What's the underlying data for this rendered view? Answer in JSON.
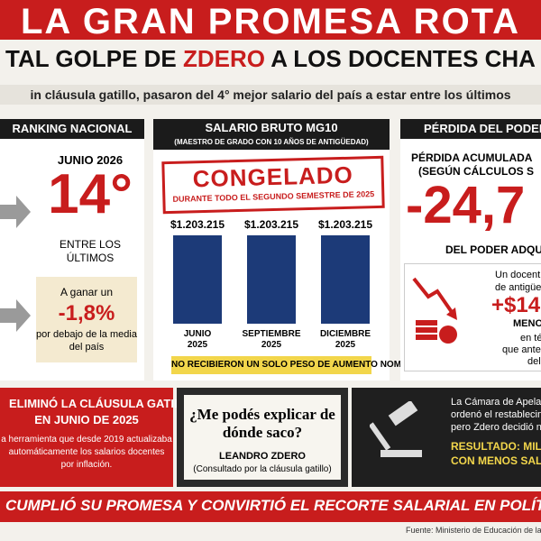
{
  "header": {
    "title": "LA GRAN PROMESA ROTA",
    "subtitle_parts": [
      "TAL GOLPE DE ",
      "ZDERO",
      " A LOS DOCENTES CHA"
    ],
    "lead": "in cláusula gatillo, pasaron del 4° mejor salario del país a estar entre los últimos"
  },
  "ranking": {
    "heading": "RANKING NACIONAL",
    "date": "JUNIO 2026",
    "position": "14°",
    "caption_lines": [
      "ENTRE LOS",
      "ÚLTIMOS"
    ],
    "box_lines": [
      "A ganar un",
      "-1,8%",
      "por debajo de la media",
      "del país"
    ]
  },
  "salary": {
    "heading": "SALARIO BRUTO MG10",
    "subheading": "(MAESTRO DE GRADO CON 10 AÑOS DE ANTIGÜEDAD)",
    "stamp": "CONGELADO",
    "stamp_note": "DURANTE TODO EL SEGUNDO SEMESTRE DE 2025",
    "periods": [
      "JUNIO 2025",
      "SEPTIEMBRE 2025",
      "DICIEMBRE 2025"
    ],
    "values": [
      1203215,
      1203215,
      1203215
    ],
    "value_labels": [
      "$1.203.215",
      "$1.203.215",
      "$1.203.215"
    ],
    "color": "#1c3a78",
    "footer": "NO RECIBIERON UN SOLO PESO DE AUMENTO NOMINAL"
  },
  "loss": {
    "heading": "PÉRDIDA DEL PODER",
    "lines": [
      "PÉRDIDA ACUMULADA",
      "(SEGÚN CÁLCULOS S"
    ],
    "figure": "-24,7",
    "caption": "DEL PODER ADQU",
    "box_lines": [
      "Un docent",
      "de antigüe",
      "+$14",
      "MENOS",
      "en térm",
      "que antes c",
      "del"
    ]
  },
  "gatillo": {
    "lines": [
      "ELIMINÓ LA CLÁUSULA GATILLO",
      "EN JUNIO DE 2025"
    ],
    "body": [
      "a herramienta que desde 2019 actualizaba",
      "automáticamente los salarios docentes",
      "por inflación."
    ]
  },
  "quote": {
    "text": "¿Me podés explicar de dónde saco?",
    "author": "LEANDRO ZDERO",
    "context": "(Consultado por la cláusula gatillo)"
  },
  "court": {
    "lines": [
      "La Cámara de Apela",
      "ordenó el restablecin",
      "pero Zdero decidió n"
    ],
    "result": [
      "RESULTADO: MILE",
      "CON MENOS SALARI"
    ]
  },
  "banner": "CUMPLIÓ SU PROMESA Y CONVIRTIÓ EL RECORTE SALARIAL EN POLÍTICA",
  "source": "Fuente: Ministerio de Educación de la"
}
